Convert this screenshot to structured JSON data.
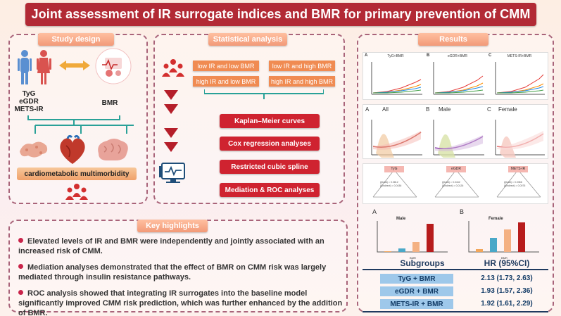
{
  "title": "Joint assessment of IR surrogate indices and BMR for primary prevention of CMM",
  "study_design": {
    "label": "Study design",
    "ir_indices": "TyG\neGDR\nMETS-IR",
    "bmr": "BMR",
    "outcome": "cardiometabolic multimorbidity"
  },
  "statistical_analysis": {
    "label": "Statistical analysis",
    "groups": [
      "low IR and low BMR",
      "low IR and high BMR",
      "high IR and low BMR",
      "high IR and high BMR"
    ],
    "methods": [
      "Kaplan–Meier curves",
      "Cox regression analyses",
      "Restricted cubic spline",
      "Mediation & ROC analyses"
    ]
  },
  "key_highlights": {
    "label": "Key highlights",
    "items": [
      "Elevated levels of IR and BMR were independently and jointly associated with an increased risk of CMM.",
      "Mediation analyses demonstrated that the effect of BMR on CMM risk was largely mediated through insulin resistance pathways.",
      "ROC analysis showed that integrating IR surrogates into the baseline model significantly improved CMM risk prediction, which was further enhanced by the addition of BMR."
    ]
  },
  "results": {
    "label": "Results",
    "km": [
      {
        "letter": "A",
        "title": "TyG+BMR"
      },
      {
        "letter": "B",
        "title": "eGDR+BMR"
      },
      {
        "letter": "C",
        "title": "METS-IR+BMR"
      }
    ],
    "rcs": [
      {
        "letter": "A",
        "title": "All"
      },
      {
        "letter": "B",
        "title": "Male"
      },
      {
        "letter": "C",
        "title": "Female"
      }
    ],
    "mediation": [
      "TyG",
      "eGDR",
      "METS-IR"
    ],
    "bars": [
      {
        "letter": "A",
        "title": "Male"
      },
      {
        "letter": "B",
        "title": "Female"
      }
    ],
    "table": {
      "header_left": "Subgroups",
      "header_right": "HR (95%CI)",
      "rows": [
        {
          "label": "TyG + BMR",
          "hr": "2.13 (1.73, 2.63)"
        },
        {
          "label": "eGDR + BMR",
          "hr": "1.93 (1.57, 2.36)"
        },
        {
          "label": "METS-IR + BMR",
          "hr": "1.92 (1.61, 2.29)"
        }
      ]
    }
  },
  "colors": {
    "title_bg": "#b22a35",
    "accent_red": "#cf2330",
    "orange": "#f08b52",
    "table_blue": "#9ec8ea"
  }
}
